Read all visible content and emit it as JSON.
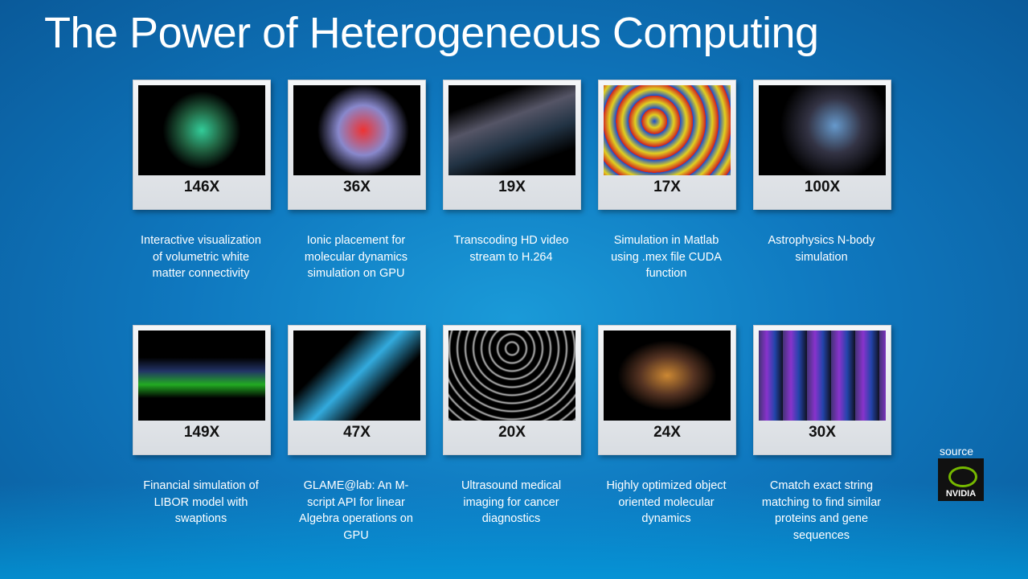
{
  "header": {
    "title": "The Power of Heterogeneous Computing"
  },
  "cards": [
    {
      "speedup": "146X",
      "description": "Interactive visualization of volumetric white matter connectivity"
    },
    {
      "speedup": "36X",
      "description": "Ionic placement for molecular dynamics simulation on GPU"
    },
    {
      "speedup": "19X",
      "description": "Transcoding HD video stream to H.264"
    },
    {
      "speedup": "17X",
      "description": "Simulation in Matlab using .mex file CUDA function"
    },
    {
      "speedup": "100X",
      "description": "Astrophysics N-body simulation"
    },
    {
      "speedup": "149X",
      "description": "Financial simulation of LIBOR model with swaptions"
    },
    {
      "speedup": "47X",
      "description": "GLAME@lab: An M-script API for linear Algebra operations on GPU"
    },
    {
      "speedup": "20X",
      "description": "Ultrasound medical imaging for cancer diagnostics"
    },
    {
      "speedup": "24X",
      "description": "Highly optimized object oriented molecular dynamics"
    },
    {
      "speedup": "30X",
      "description": "Cmatch exact string matching to find similar proteins and gene sequences"
    }
  ],
  "source": {
    "label": "source",
    "logo": "NVIDIA"
  }
}
